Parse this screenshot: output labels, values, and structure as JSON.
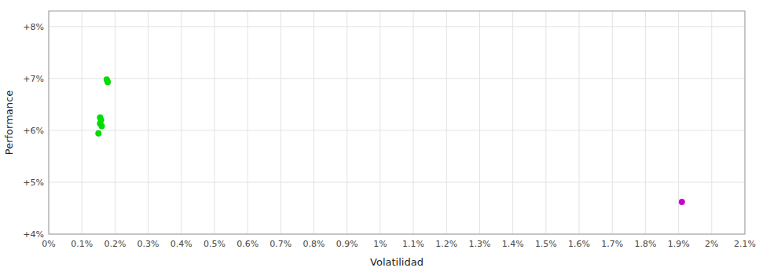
{
  "chart_data": {
    "type": "scatter",
    "xlabel": "Volatilidad",
    "ylabel": "Performance",
    "xlim": [
      0.0,
      0.021
    ],
    "ylim": [
      0.04,
      0.083
    ],
    "xticks": [
      {
        "value": 0.0,
        "label": "0%"
      },
      {
        "value": 0.001,
        "label": "0.1%"
      },
      {
        "value": 0.002,
        "label": "0.2%"
      },
      {
        "value": 0.003,
        "label": "0.3%"
      },
      {
        "value": 0.004,
        "label": "0.4%"
      },
      {
        "value": 0.005,
        "label": "0.5%"
      },
      {
        "value": 0.006,
        "label": "0.6%"
      },
      {
        "value": 0.007,
        "label": "0.7%"
      },
      {
        "value": 0.008,
        "label": "0.8%"
      },
      {
        "value": 0.009,
        "label": "0.9%"
      },
      {
        "value": 0.01,
        "label": "1%"
      },
      {
        "value": 0.011,
        "label": "1.1%"
      },
      {
        "value": 0.012,
        "label": "1.2%"
      },
      {
        "value": 0.013,
        "label": "1.3%"
      },
      {
        "value": 0.014,
        "label": "1.4%"
      },
      {
        "value": 0.015,
        "label": "1.5%"
      },
      {
        "value": 0.016,
        "label": "1.6%"
      },
      {
        "value": 0.017,
        "label": "1.7%"
      },
      {
        "value": 0.018,
        "label": "1.8%"
      },
      {
        "value": 0.019,
        "label": "1.9%"
      },
      {
        "value": 0.02,
        "label": "2%"
      },
      {
        "value": 0.021,
        "label": "2.1%"
      }
    ],
    "yticks": [
      {
        "value": 0.04,
        "label": "+4%"
      },
      {
        "value": 0.05,
        "label": "+5%"
      },
      {
        "value": 0.06,
        "label": "+6%"
      },
      {
        "value": 0.07,
        "label": "+7%"
      },
      {
        "value": 0.08,
        "label": "+8%"
      }
    ],
    "grid": true,
    "series": [
      {
        "color": "#00dd00",
        "x": [
          0.00175,
          0.00178,
          0.00155,
          0.00158,
          0.00155,
          0.0016,
          0.0015
        ],
        "values": [
          0.0698,
          0.0693,
          0.0625,
          0.062,
          0.0613,
          0.0608,
          0.0594
        ]
      },
      {
        "color": "#cc00cc",
        "x": [
          0.0191
        ],
        "values": [
          0.0462
        ]
      }
    ]
  }
}
